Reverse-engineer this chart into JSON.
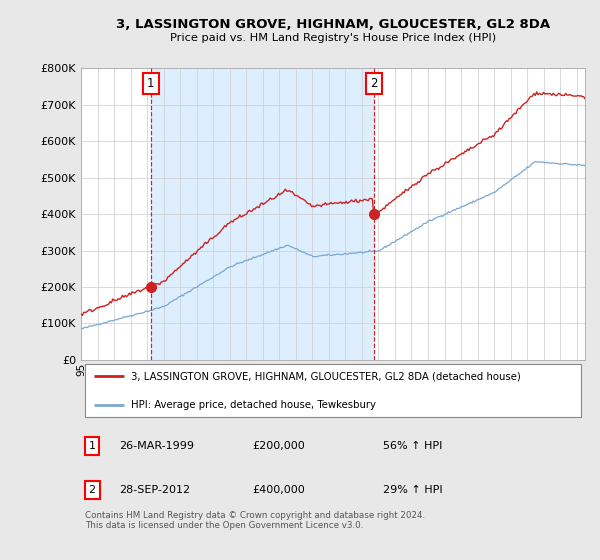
{
  "title": "3, LASSINGTON GROVE, HIGHNAM, GLOUCESTER, GL2 8DA",
  "subtitle": "Price paid vs. HM Land Registry's House Price Index (HPI)",
  "ylim": [
    0,
    800000
  ],
  "yticks": [
    0,
    100000,
    200000,
    300000,
    400000,
    500000,
    600000,
    700000,
    800000
  ],
  "ytick_labels": [
    "£0",
    "£100K",
    "£200K",
    "£300K",
    "£400K",
    "£500K",
    "£600K",
    "£700K",
    "£800K"
  ],
  "xlim_start": 1995.0,
  "xlim_end": 2025.5,
  "hpi_color": "#7aa8d2",
  "price_color": "#cc2222",
  "purchase1_year": 1999.22,
  "purchase1_price": 200000,
  "purchase2_year": 2012.75,
  "purchase2_price": 400000,
  "ann1_date": "26-MAR-1999",
  "ann1_price": "£200,000",
  "ann1_hpi": "56% ↑ HPI",
  "ann2_date": "28-SEP-2012",
  "ann2_price": "£400,000",
  "ann2_hpi": "29% ↑ HPI",
  "legend_line1": "3, LASSINGTON GROVE, HIGHNAM, GLOUCESTER, GL2 8DA (detached house)",
  "legend_line2": "HPI: Average price, detached house, Tewkesbury",
  "footer": "Contains HM Land Registry data © Crown copyright and database right 2024.\nThis data is licensed under the Open Government Licence v3.0.",
  "bg_color": "#e8e8e8",
  "plot_bg": "#ffffff",
  "shade_color": "#ddeeff"
}
